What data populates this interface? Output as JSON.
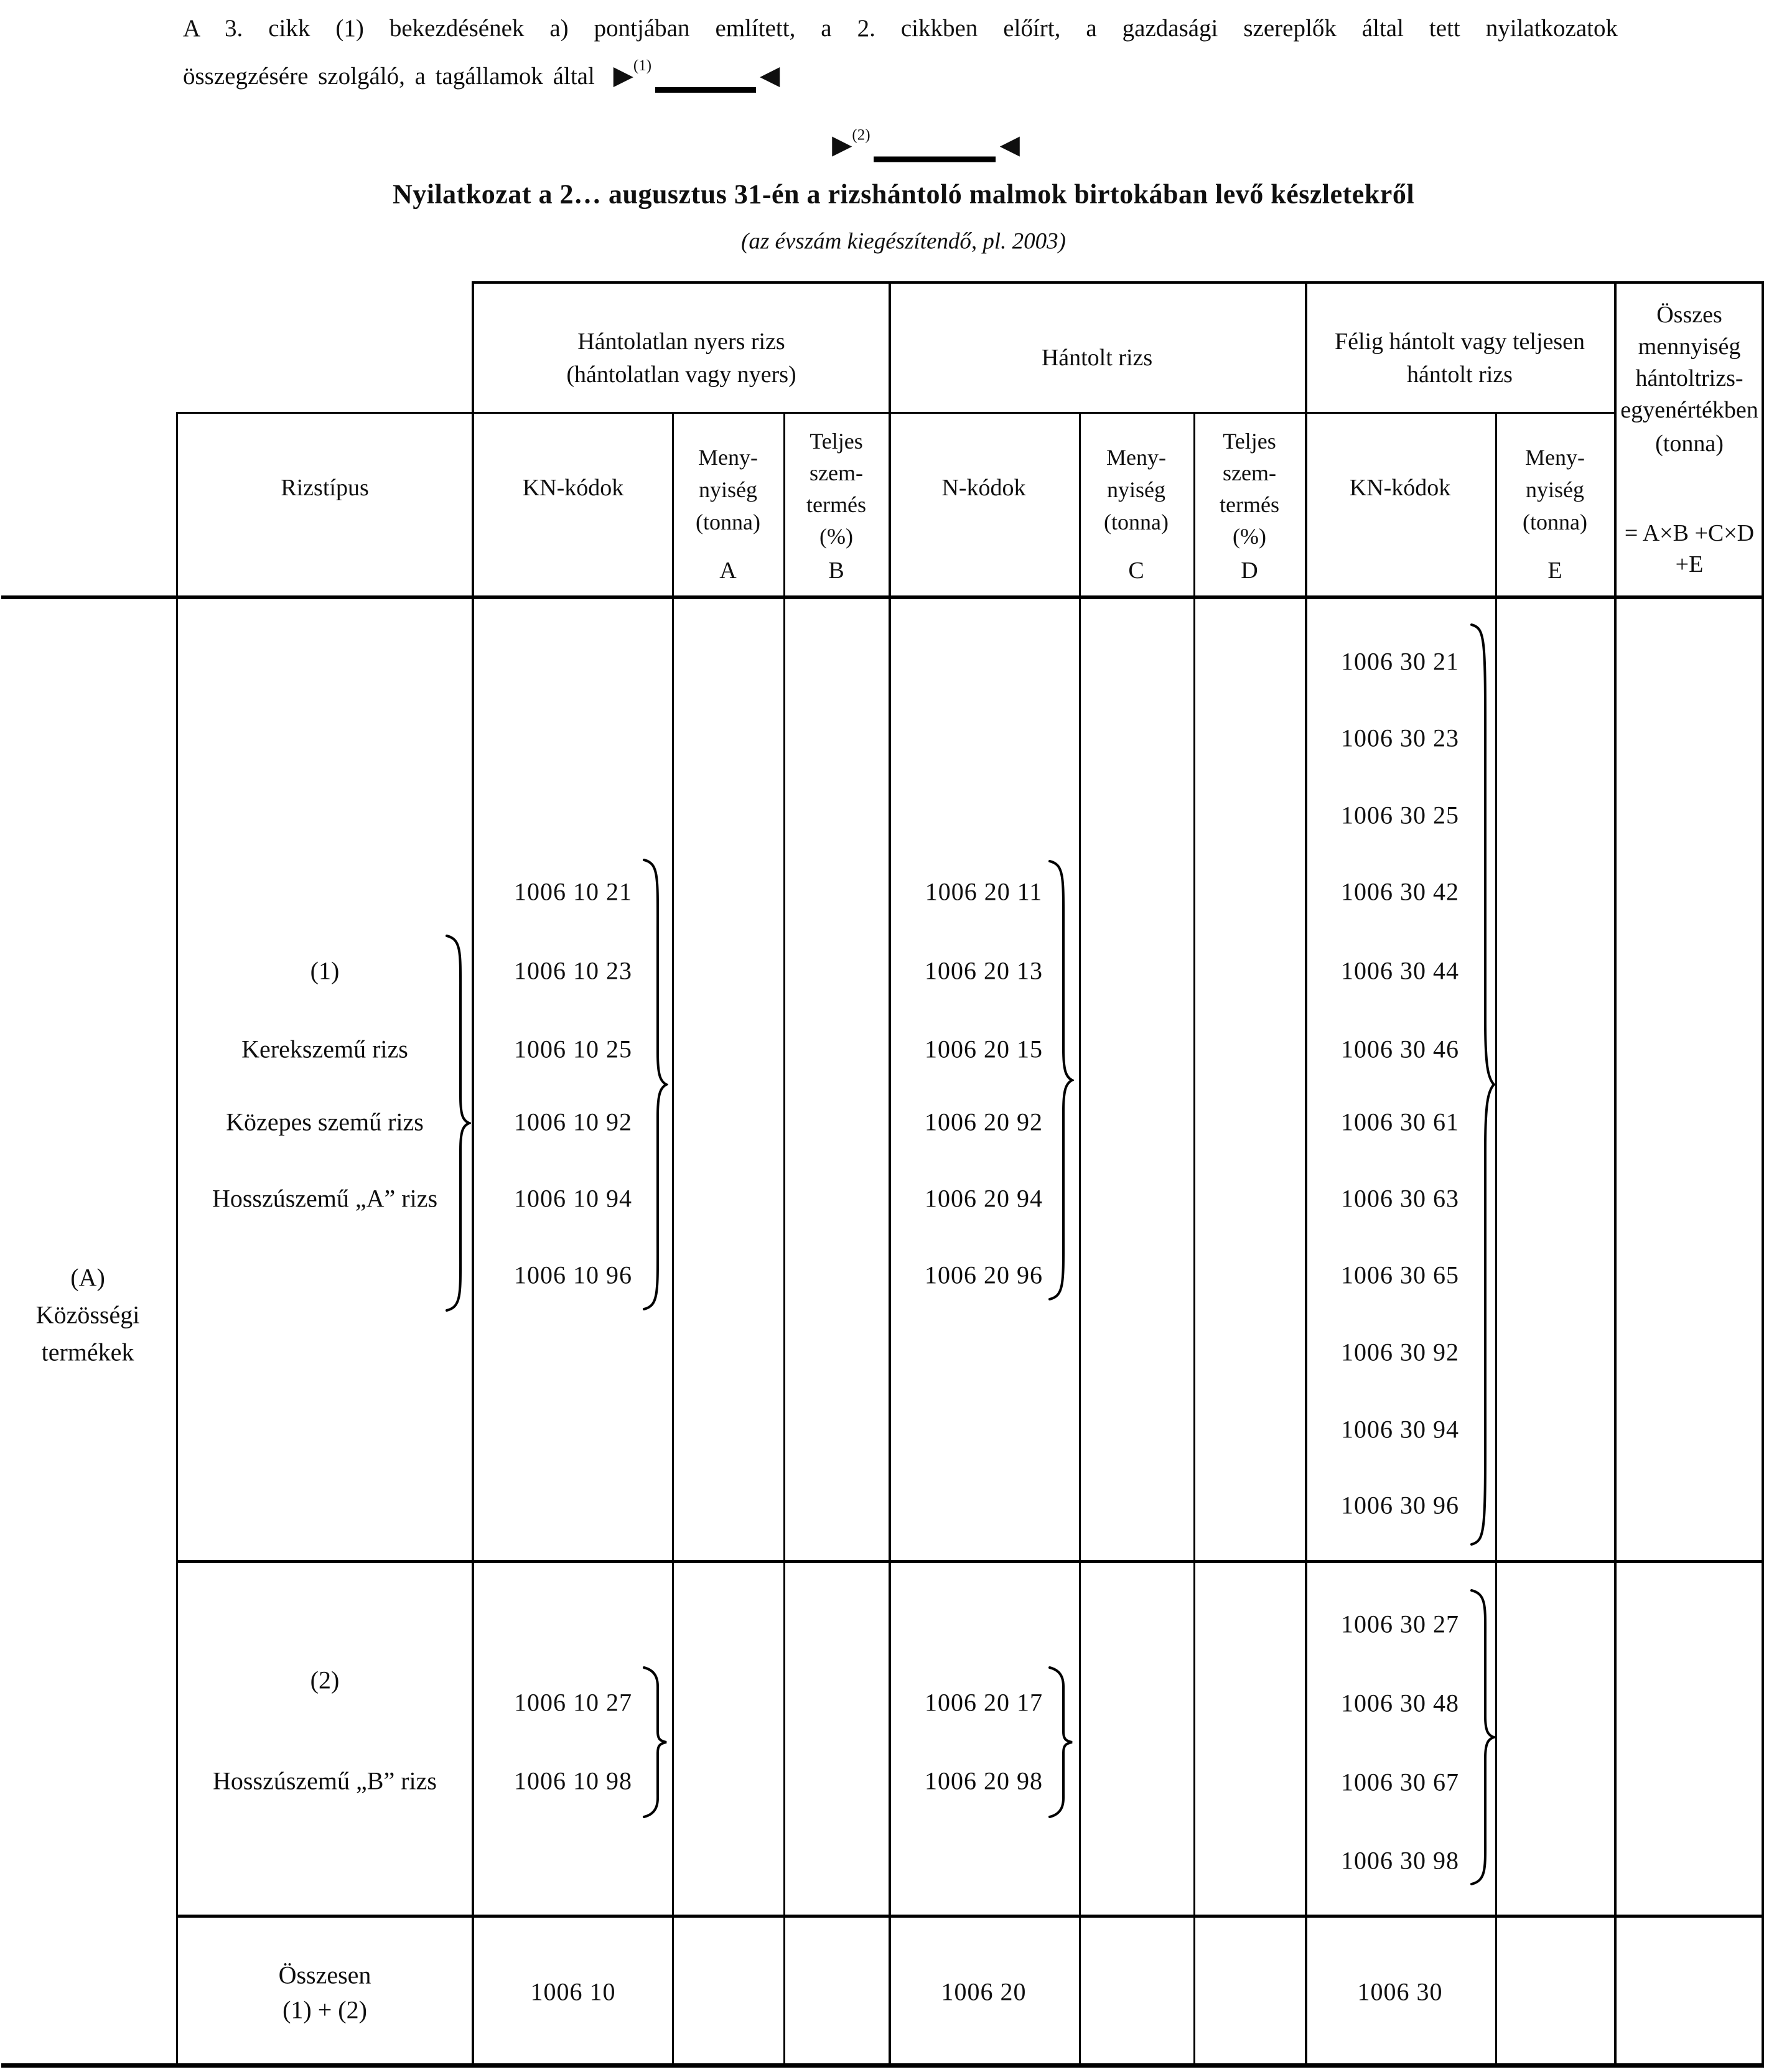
{
  "doc": {
    "intro_line1": "A 3. cikk (1) bekezdésének a) pontjában említett, a 2. cikkben előírt, a gazdasági szereplők által tett nyilatkozatok",
    "intro_line2_prefix": "összegzésére szolgáló, a tagállamok által",
    "marker1": {
      "tri_right": "▶",
      "label": "(1)",
      "tri_left": "◀"
    },
    "marker2": {
      "tri_right": "▶",
      "label": "(2)",
      "tri_left": "◀"
    },
    "title": "Nyilatkozat a 2… augusztus 31-én a rizshántoló malmok birtokában levő készletekről",
    "subtitle": "(az évszám kiegészítendő, pl. 2003)"
  },
  "table": {
    "group_headers": {
      "g1_line1": "Hántolatlan nyers rizs",
      "g1_line2": "(hántolatlan vagy nyers)",
      "g2": "Hántolt rizs",
      "g3_line1": "Félig hántolt vagy teljesen",
      "g3_line2": "hántolt rizs",
      "total_lines": [
        "Összes",
        "mennyiség",
        "hántoltrizs-",
        "egyenértékben",
        "(tonna)"
      ],
      "total_formula_line1": "= A×B +C×D",
      "total_formula_line2": "+E"
    },
    "col_headers": {
      "rice_type": "Rizstípus",
      "kn_codes": "KN-kódok",
      "n_codes": "N-kódok",
      "qty_lines": [
        "Meny-",
        "nyiség",
        "(tonna)"
      ],
      "yield_lines": [
        "Teljes",
        "szem-",
        "termés",
        "(%)"
      ],
      "letter_a": "A",
      "letter_b": "B",
      "letter_c": "C",
      "letter_d": "D",
      "letter_e": "E"
    },
    "left_label_lines": [
      "(A)",
      "Közösségi",
      "termékek"
    ],
    "section1": {
      "number": "(1)",
      "type1": "Kerekszemű rizs",
      "type2": "Közepes szemű rizs",
      "type3": "Hosszúszemű „A” rizs",
      "kn1_codes": [
        "1006 10 21",
        "1006 10 23",
        "1006 10 25",
        "1006 10 92",
        "1006 10 94",
        "1006 10 96"
      ],
      "n_codes": [
        "1006 20 11",
        "1006 20 13",
        "1006 20 15",
        "1006 20 92",
        "1006 20 94",
        "1006 20 96"
      ],
      "kn3_codes": [
        "1006 30 21",
        "1006 30 23",
        "1006 30 25",
        "1006 30 42",
        "1006 30 44",
        "1006 30 46",
        "1006 30 61",
        "1006 30 63",
        "1006 30 65",
        "1006 30 92",
        "1006 30 94",
        "1006 30 96"
      ]
    },
    "section2": {
      "number": "(2)",
      "type1": "Hosszúszemű „B” rizs",
      "kn1_codes": [
        "1006 10 27",
        "1006 10 98"
      ],
      "n_codes": [
        "1006 20 17",
        "1006 20 98"
      ],
      "kn3_codes": [
        "1006 30 27",
        "1006 30 48",
        "1006 30 67",
        "1006 30 98"
      ]
    },
    "total_row": {
      "label_line1": "Összesen",
      "label_line2": "(1) + (2)",
      "kn1": "1006 10",
      "n": "1006 20",
      "kn3": "1006 30"
    }
  }
}
